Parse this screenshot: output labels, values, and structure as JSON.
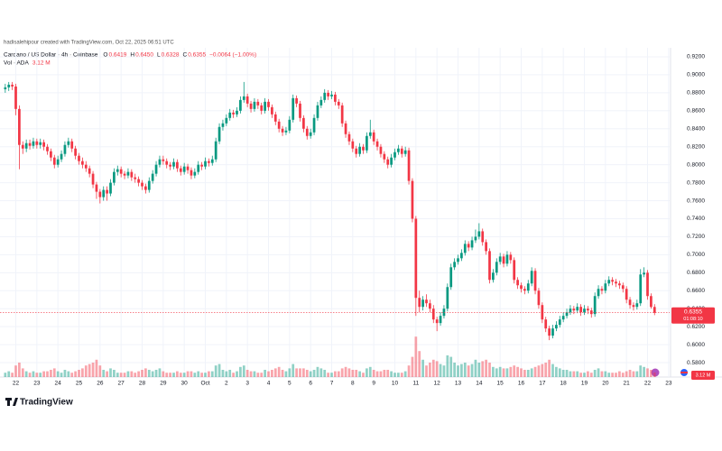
{
  "chart_data": {
    "type": "candlestick",
    "credit": "hadisalehipour created with TradingView.com, Oct 22, 2025 06:51 UTC",
    "title": "Cardano / US Dollar · 4h · Coinbase",
    "ohlc_legend": [
      {
        "key": "O",
        "value": "0.6419"
      },
      {
        "key": "H",
        "value": "0.6450"
      },
      {
        "key": "L",
        "value": "0.6328"
      },
      {
        "key": "C",
        "value": "0.6355"
      }
    ],
    "change": "−0.0064 (−1.00%)",
    "volume_legend": "Vol · ADA",
    "volume_value": "3.12 M",
    "last_price_label": "0.6355",
    "countdown": "01:08:10",
    "logo": "TradingView",
    "up_color": "#089981",
    "down_color": "#f23645",
    "grid": true,
    "ylim": [
      0.565,
      0.93
    ],
    "yticks": [
      {
        "value": 0.58,
        "label": "0.5800"
      },
      {
        "value": 0.6,
        "label": "0.6000"
      },
      {
        "value": 0.62,
        "label": "0.6200"
      },
      {
        "value": 0.64,
        "label": "0.6400"
      },
      {
        "value": 0.66,
        "label": "0.6600"
      },
      {
        "value": 0.68,
        "label": "0.6800"
      },
      {
        "value": 0.7,
        "label": "0.7000"
      },
      {
        "value": 0.72,
        "label": "0.7200"
      },
      {
        "value": 0.74,
        "label": "0.7400"
      },
      {
        "value": 0.76,
        "label": "0.7600"
      },
      {
        "value": 0.78,
        "label": "0.7800"
      },
      {
        "value": 0.8,
        "label": "0.8000"
      },
      {
        "value": 0.82,
        "label": "0.8200"
      },
      {
        "value": 0.84,
        "label": "0.8400"
      },
      {
        "value": 0.86,
        "label": "0.8600"
      },
      {
        "value": 0.88,
        "label": "0.8800"
      },
      {
        "value": 0.9,
        "label": "0.9000"
      },
      {
        "value": 0.92,
        "label": "0.9200"
      }
    ],
    "xlim": [
      -1.5,
      189.3
    ],
    "xticks": [
      {
        "value": 3,
        "label": "22"
      },
      {
        "value": 9,
        "label": "23"
      },
      {
        "value": 15,
        "label": "24"
      },
      {
        "value": 21,
        "label": "25"
      },
      {
        "value": 27,
        "label": "26"
      },
      {
        "value": 33,
        "label": "27"
      },
      {
        "value": 39,
        "label": "28"
      },
      {
        "value": 45,
        "label": "29"
      },
      {
        "value": 51,
        "label": "30"
      },
      {
        "value": 57,
        "label": "Oct"
      },
      {
        "value": 63,
        "label": "2"
      },
      {
        "value": 69,
        "label": "3"
      },
      {
        "value": 75,
        "label": "4"
      },
      {
        "value": 81,
        "label": "5"
      },
      {
        "value": 87,
        "label": "6"
      },
      {
        "value": 93,
        "label": "7"
      },
      {
        "value": 99,
        "label": "8"
      },
      {
        "value": 105,
        "label": "9"
      },
      {
        "value": 111,
        "label": "10"
      },
      {
        "value": 117,
        "label": "11"
      },
      {
        "value": 123,
        "label": "12"
      },
      {
        "value": 129,
        "label": "13"
      },
      {
        "value": 135,
        "label": "14"
      },
      {
        "value": 141,
        "label": "15"
      },
      {
        "value": 147,
        "label": "16"
      },
      {
        "value": 153,
        "label": "17"
      },
      {
        "value": 159,
        "label": "18"
      },
      {
        "value": 165,
        "label": "19"
      },
      {
        "value": 171,
        "label": "20"
      },
      {
        "value": 177,
        "label": "21"
      },
      {
        "value": 183,
        "label": "22"
      },
      {
        "value": 189,
        "label": "23"
      }
    ],
    "volume_lim": [
      0,
      60
    ],
    "candles": [
      [
        0.884,
        0.89,
        0.88,
        0.886
      ],
      [
        0.886,
        0.892,
        0.882,
        0.889
      ],
      [
        0.889,
        0.892,
        0.883,
        0.887
      ],
      [
        0.887,
        0.89,
        0.855,
        0.862
      ],
      [
        0.862,
        0.866,
        0.795,
        0.822
      ],
      [
        0.822,
        0.826,
        0.812,
        0.818
      ],
      [
        0.818,
        0.828,
        0.814,
        0.824
      ],
      [
        0.824,
        0.828,
        0.817,
        0.821
      ],
      [
        0.821,
        0.83,
        0.818,
        0.826
      ],
      [
        0.826,
        0.829,
        0.818,
        0.822
      ],
      [
        0.822,
        0.829,
        0.818,
        0.825
      ],
      [
        0.825,
        0.828,
        0.816,
        0.82
      ],
      [
        0.82,
        0.823,
        0.811,
        0.815
      ],
      [
        0.815,
        0.818,
        0.804,
        0.808
      ],
      [
        0.808,
        0.811,
        0.796,
        0.8
      ],
      [
        0.8,
        0.81,
        0.797,
        0.806
      ],
      [
        0.806,
        0.816,
        0.803,
        0.812
      ],
      [
        0.812,
        0.826,
        0.809,
        0.822
      ],
      [
        0.822,
        0.83,
        0.819,
        0.826
      ],
      [
        0.826,
        0.829,
        0.814,
        0.818
      ],
      [
        0.818,
        0.821,
        0.806,
        0.81
      ],
      [
        0.81,
        0.813,
        0.8,
        0.804
      ],
      [
        0.804,
        0.808,
        0.796,
        0.8
      ],
      [
        0.8,
        0.804,
        0.792,
        0.796
      ],
      [
        0.796,
        0.799,
        0.786,
        0.79
      ],
      [
        0.79,
        0.793,
        0.774,
        0.778
      ],
      [
        0.778,
        0.781,
        0.762,
        0.77
      ],
      [
        0.77,
        0.773,
        0.757,
        0.764
      ],
      [
        0.764,
        0.776,
        0.76,
        0.772
      ],
      [
        0.772,
        0.776,
        0.76,
        0.768
      ],
      [
        0.768,
        0.784,
        0.765,
        0.78
      ],
      [
        0.78,
        0.796,
        0.777,
        0.792
      ],
      [
        0.792,
        0.799,
        0.788,
        0.795
      ],
      [
        0.795,
        0.798,
        0.786,
        0.79
      ],
      [
        0.79,
        0.793,
        0.784,
        0.788
      ],
      [
        0.788,
        0.796,
        0.785,
        0.792
      ],
      [
        0.792,
        0.795,
        0.782,
        0.786
      ],
      [
        0.786,
        0.79,
        0.78,
        0.784
      ],
      [
        0.784,
        0.787,
        0.776,
        0.78
      ],
      [
        0.78,
        0.783,
        0.772,
        0.776
      ],
      [
        0.776,
        0.779,
        0.768,
        0.772
      ],
      [
        0.772,
        0.786,
        0.769,
        0.782
      ],
      [
        0.782,
        0.794,
        0.779,
        0.79
      ],
      [
        0.79,
        0.804,
        0.787,
        0.8
      ],
      [
        0.8,
        0.81,
        0.797,
        0.806
      ],
      [
        0.806,
        0.81,
        0.8,
        0.804
      ],
      [
        0.804,
        0.807,
        0.796,
        0.8
      ],
      [
        0.8,
        0.803,
        0.794,
        0.798
      ],
      [
        0.798,
        0.807,
        0.795,
        0.803
      ],
      [
        0.803,
        0.806,
        0.792,
        0.796
      ],
      [
        0.796,
        0.799,
        0.788,
        0.792
      ],
      [
        0.792,
        0.802,
        0.789,
        0.798
      ],
      [
        0.798,
        0.801,
        0.79,
        0.794
      ],
      [
        0.794,
        0.797,
        0.784,
        0.788
      ],
      [
        0.788,
        0.796,
        0.785,
        0.792
      ],
      [
        0.792,
        0.804,
        0.789,
        0.8
      ],
      [
        0.8,
        0.803,
        0.794,
        0.798
      ],
      [
        0.798,
        0.808,
        0.795,
        0.804
      ],
      [
        0.804,
        0.807,
        0.798,
        0.802
      ],
      [
        0.802,
        0.81,
        0.799,
        0.806
      ],
      [
        0.806,
        0.83,
        0.803,
        0.826
      ],
      [
        0.826,
        0.846,
        0.823,
        0.842
      ],
      [
        0.842,
        0.85,
        0.838,
        0.846
      ],
      [
        0.846,
        0.856,
        0.843,
        0.852
      ],
      [
        0.852,
        0.862,
        0.849,
        0.858
      ],
      [
        0.858,
        0.861,
        0.852,
        0.856
      ],
      [
        0.856,
        0.864,
        0.853,
        0.86
      ],
      [
        0.86,
        0.876,
        0.857,
        0.872
      ],
      [
        0.872,
        0.892,
        0.869,
        0.876
      ],
      [
        0.876,
        0.879,
        0.864,
        0.868
      ],
      [
        0.868,
        0.871,
        0.858,
        0.862
      ],
      [
        0.862,
        0.874,
        0.859,
        0.87
      ],
      [
        0.87,
        0.873,
        0.862,
        0.866
      ],
      [
        0.866,
        0.869,
        0.856,
        0.86
      ],
      [
        0.86,
        0.874,
        0.857,
        0.87
      ],
      [
        0.87,
        0.873,
        0.86,
        0.864
      ],
      [
        0.864,
        0.867,
        0.852,
        0.856
      ],
      [
        0.856,
        0.859,
        0.844,
        0.848
      ],
      [
        0.848,
        0.851,
        0.836,
        0.84
      ],
      [
        0.84,
        0.843,
        0.832,
        0.836
      ],
      [
        0.836,
        0.842,
        0.833,
        0.838
      ],
      [
        0.838,
        0.854,
        0.835,
        0.85
      ],
      [
        0.85,
        0.878,
        0.847,
        0.874
      ],
      [
        0.874,
        0.877,
        0.864,
        0.868
      ],
      [
        0.868,
        0.871,
        0.848,
        0.852
      ],
      [
        0.852,
        0.855,
        0.836,
        0.84
      ],
      [
        0.84,
        0.843,
        0.828,
        0.832
      ],
      [
        0.832,
        0.84,
        0.829,
        0.836
      ],
      [
        0.836,
        0.856,
        0.833,
        0.852
      ],
      [
        0.852,
        0.87,
        0.849,
        0.866
      ],
      [
        0.866,
        0.876,
        0.863,
        0.872
      ],
      [
        0.872,
        0.884,
        0.869,
        0.88
      ],
      [
        0.88,
        0.883,
        0.872,
        0.876
      ],
      [
        0.876,
        0.882,
        0.873,
        0.878
      ],
      [
        0.878,
        0.881,
        0.866,
        0.87
      ],
      [
        0.87,
        0.873,
        0.862,
        0.866
      ],
      [
        0.866,
        0.869,
        0.842,
        0.846
      ],
      [
        0.846,
        0.849,
        0.83,
        0.834
      ],
      [
        0.834,
        0.837,
        0.822,
        0.826
      ],
      [
        0.826,
        0.829,
        0.814,
        0.818
      ],
      [
        0.818,
        0.821,
        0.808,
        0.812
      ],
      [
        0.812,
        0.824,
        0.809,
        0.82
      ],
      [
        0.82,
        0.823,
        0.812,
        0.816
      ],
      [
        0.816,
        0.836,
        0.813,
        0.832
      ],
      [
        0.832,
        0.85,
        0.829,
        0.836
      ],
      [
        0.836,
        0.839,
        0.822,
        0.826
      ],
      [
        0.826,
        0.829,
        0.816,
        0.82
      ],
      [
        0.82,
        0.823,
        0.808,
        0.812
      ],
      [
        0.812,
        0.815,
        0.802,
        0.806
      ],
      [
        0.806,
        0.809,
        0.796,
        0.8
      ],
      [
        0.8,
        0.812,
        0.797,
        0.808
      ],
      [
        0.808,
        0.818,
        0.805,
        0.814
      ],
      [
        0.814,
        0.822,
        0.811,
        0.818
      ],
      [
        0.818,
        0.821,
        0.808,
        0.812
      ],
      [
        0.812,
        0.82,
        0.809,
        0.816
      ],
      [
        0.816,
        0.819,
        0.778,
        0.782
      ],
      [
        0.782,
        0.785,
        0.736,
        0.74
      ],
      [
        0.74,
        0.743,
        0.632,
        0.652
      ],
      [
        0.652,
        0.66,
        0.636,
        0.642
      ],
      [
        0.642,
        0.654,
        0.638,
        0.65
      ],
      [
        0.65,
        0.656,
        0.642,
        0.646
      ],
      [
        0.646,
        0.65,
        0.636,
        0.64
      ],
      [
        0.64,
        0.644,
        0.624,
        0.628
      ],
      [
        0.628,
        0.631,
        0.615,
        0.624
      ],
      [
        0.624,
        0.636,
        0.621,
        0.632
      ],
      [
        0.632,
        0.644,
        0.629,
        0.64
      ],
      [
        0.64,
        0.668,
        0.637,
        0.664
      ],
      [
        0.664,
        0.69,
        0.661,
        0.686
      ],
      [
        0.686,
        0.696,
        0.683,
        0.692
      ],
      [
        0.692,
        0.7,
        0.689,
        0.696
      ],
      [
        0.696,
        0.706,
        0.693,
        0.702
      ],
      [
        0.702,
        0.716,
        0.699,
        0.712
      ],
      [
        0.712,
        0.715,
        0.704,
        0.708
      ],
      [
        0.708,
        0.72,
        0.705,
        0.716
      ],
      [
        0.716,
        0.728,
        0.713,
        0.72
      ],
      [
        0.72,
        0.735,
        0.717,
        0.726
      ],
      [
        0.726,
        0.729,
        0.71,
        0.714
      ],
      [
        0.714,
        0.717,
        0.7,
        0.704
      ],
      [
        0.704,
        0.707,
        0.668,
        0.672
      ],
      [
        0.672,
        0.684,
        0.669,
        0.68
      ],
      [
        0.68,
        0.696,
        0.677,
        0.692
      ],
      [
        0.692,
        0.702,
        0.689,
        0.698
      ],
      [
        0.698,
        0.701,
        0.686,
        0.69
      ],
      [
        0.69,
        0.704,
        0.687,
        0.7
      ],
      [
        0.7,
        0.703,
        0.69,
        0.694
      ],
      [
        0.694,
        0.697,
        0.668,
        0.672
      ],
      [
        0.672,
        0.675,
        0.662,
        0.666
      ],
      [
        0.666,
        0.669,
        0.658,
        0.662
      ],
      [
        0.662,
        0.665,
        0.656,
        0.66
      ],
      [
        0.66,
        0.672,
        0.657,
        0.668
      ],
      [
        0.668,
        0.686,
        0.665,
        0.682
      ],
      [
        0.682,
        0.685,
        0.656,
        0.66
      ],
      [
        0.66,
        0.663,
        0.64,
        0.644
      ],
      [
        0.644,
        0.647,
        0.624,
        0.628
      ],
      [
        0.628,
        0.631,
        0.614,
        0.618
      ],
      [
        0.618,
        0.621,
        0.605,
        0.61
      ],
      [
        0.61,
        0.622,
        0.607,
        0.618
      ],
      [
        0.618,
        0.626,
        0.615,
        0.622
      ],
      [
        0.622,
        0.632,
        0.619,
        0.628
      ],
      [
        0.628,
        0.636,
        0.625,
        0.632
      ],
      [
        0.632,
        0.64,
        0.629,
        0.636
      ],
      [
        0.636,
        0.644,
        0.633,
        0.64
      ],
      [
        0.64,
        0.643,
        0.634,
        0.638
      ],
      [
        0.638,
        0.646,
        0.635,
        0.642
      ],
      [
        0.642,
        0.645,
        0.632,
        0.636
      ],
      [
        0.636,
        0.644,
        0.633,
        0.64
      ],
      [
        0.64,
        0.643,
        0.634,
        0.638
      ],
      [
        0.638,
        0.641,
        0.63,
        0.634
      ],
      [
        0.634,
        0.658,
        0.631,
        0.654
      ],
      [
        0.654,
        0.666,
        0.651,
        0.662
      ],
      [
        0.662,
        0.665,
        0.656,
        0.66
      ],
      [
        0.66,
        0.672,
        0.657,
        0.668
      ],
      [
        0.668,
        0.676,
        0.665,
        0.672
      ],
      [
        0.672,
        0.675,
        0.666,
        0.67
      ],
      [
        0.67,
        0.673,
        0.664,
        0.668
      ],
      [
        0.668,
        0.671,
        0.662,
        0.666
      ],
      [
        0.666,
        0.669,
        0.658,
        0.662
      ],
      [
        0.662,
        0.665,
        0.646,
        0.65
      ],
      [
        0.65,
        0.653,
        0.64,
        0.644
      ],
      [
        0.644,
        0.647,
        0.638,
        0.642
      ],
      [
        0.642,
        0.65,
        0.639,
        0.646
      ],
      [
        0.646,
        0.684,
        0.643,
        0.678
      ],
      [
        0.678,
        0.686,
        0.675,
        0.68
      ],
      [
        0.68,
        0.683,
        0.65,
        0.654
      ],
      [
        0.654,
        0.657,
        0.64,
        0.6419
      ],
      [
        0.6419,
        0.645,
        0.6328,
        0.6355
      ]
    ],
    "volumes": [
      3,
      4,
      3,
      8,
      10,
      6,
      4,
      3,
      4,
      3,
      3,
      4,
      4,
      5,
      6,
      4,
      3,
      5,
      4,
      3,
      4,
      5,
      6,
      8,
      9,
      10,
      12,
      8,
      5,
      4,
      6,
      5,
      3,
      3,
      3,
      4,
      4,
      3,
      4,
      5,
      6,
      5,
      4,
      5,
      6,
      4,
      3,
      3,
      3,
      4,
      3,
      3,
      4,
      4,
      3,
      4,
      3,
      3,
      4,
      4,
      8,
      9,
      5,
      4,
      5,
      3,
      4,
      7,
      8,
      5,
      4,
      4,
      3,
      3,
      5,
      4,
      5,
      6,
      7,
      5,
      4,
      6,
      9,
      6,
      6,
      6,
      5,
      4,
      5,
      7,
      6,
      5,
      3,
      3,
      4,
      4,
      6,
      7,
      6,
      5,
      5,
      4,
      3,
      6,
      7,
      5,
      4,
      4,
      5,
      5,
      4,
      3,
      3,
      3,
      4,
      8,
      14,
      28,
      18,
      12,
      8,
      10,
      12,
      11,
      9,
      8,
      15,
      14,
      10,
      8,
      9,
      10,
      8,
      9,
      12,
      10,
      11,
      12,
      10,
      7,
      6,
      7,
      6,
      6,
      7,
      8,
      7,
      6,
      5,
      5,
      6,
      7,
      8,
      9,
      10,
      12,
      9,
      7,
      6,
      5,
      5,
      4,
      4,
      4,
      3,
      3,
      4,
      3,
      5,
      6,
      4,
      4,
      3,
      3,
      3,
      4,
      3,
      4,
      5,
      4,
      4,
      8,
      7,
      6,
      5,
      3.12
    ]
  }
}
